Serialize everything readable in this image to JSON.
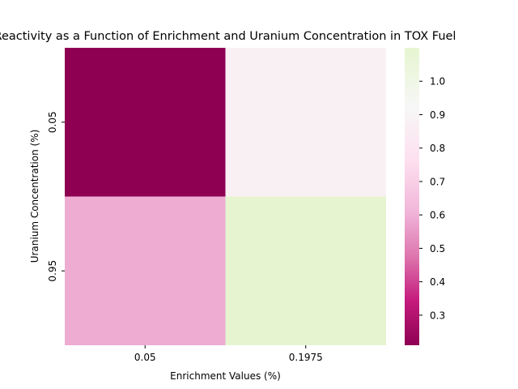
{
  "chart_data": {
    "type": "heatmap",
    "title": "Reactivity as a Function of Enrichment and Uranium Concentration in TOX Fuel",
    "xlabel": "Enrichment Values (%)",
    "ylabel": "Uranium Concentration (%)",
    "x_categories": [
      "0.05",
      "0.1975"
    ],
    "y_categories": [
      "0.05",
      "0.95"
    ],
    "values": [
      [
        0.21,
        0.87
      ],
      [
        0.59,
        1.1
      ]
    ],
    "colorbar": {
      "colormap": "PiYG",
      "min": 0.21,
      "max": 1.1,
      "ticks": [
        "0.3",
        "0.4",
        "0.5",
        "0.6",
        "0.7",
        "0.8",
        "0.9",
        "1.0"
      ]
    },
    "grid": false
  }
}
